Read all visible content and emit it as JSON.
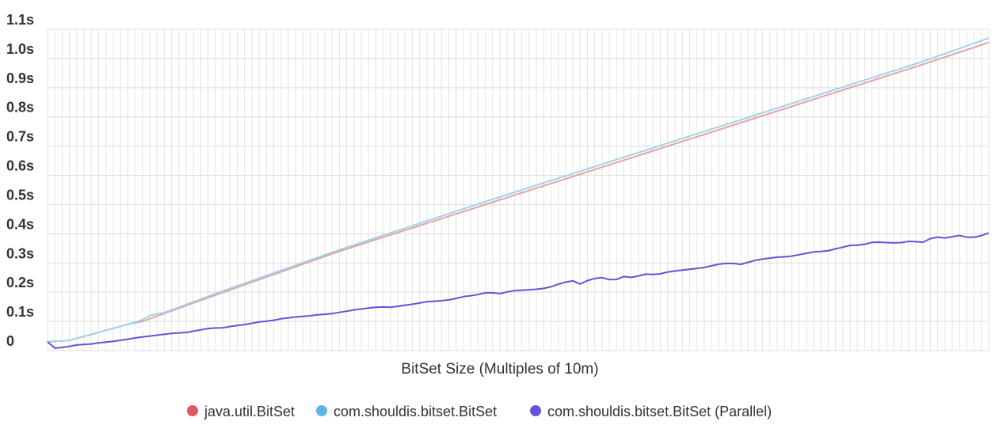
{
  "chart_data": {
    "type": "line",
    "title": "",
    "xlabel": "BitSet Size (Multiples of 10m)",
    "ylabel": "",
    "x_count": 130,
    "ylim": [
      0,
      1.1
    ],
    "ytick_values": [
      0,
      0.1,
      0.2,
      0.3,
      0.4,
      0.5,
      0.6,
      0.7,
      0.8,
      0.9,
      1.0,
      1.1
    ],
    "ytick_labels": [
      "0",
      "0.1s",
      "0.2s",
      "0.3s",
      "0.4s",
      "0.5s",
      "0.6s",
      "0.7s",
      "0.8s",
      "0.9s",
      "1.0s",
      "1.1s"
    ],
    "grid": true,
    "legend_position": "bottom-center",
    "series": [
      {
        "name": "java.util.BitSet",
        "color": "#e8a0a6",
        "legend_color": "#e05763",
        "anchors": [
          [
            0,
            0.03
          ],
          [
            3,
            0.035
          ],
          [
            11,
            0.09
          ],
          [
            13,
            0.1
          ],
          [
            23,
            0.19
          ],
          [
            40,
            0.34
          ],
          [
            60,
            0.5
          ],
          [
            80,
            0.66
          ],
          [
            100,
            0.82
          ],
          [
            120,
            0.98
          ],
          [
            129,
            1.055
          ]
        ]
      },
      {
        "name": "com.shouldis.bitset.BitSet",
        "color": "#9fd3ea",
        "legend_color": "#5ab6e2",
        "anchors": [
          [
            0,
            0.03
          ],
          [
            3,
            0.035
          ],
          [
            11,
            0.09
          ],
          [
            13,
            0.105
          ],
          [
            14,
            0.12
          ],
          [
            16,
            0.13
          ],
          [
            23,
            0.195
          ],
          [
            40,
            0.345
          ],
          [
            60,
            0.51
          ],
          [
            80,
            0.67
          ],
          [
            100,
            0.83
          ],
          [
            120,
            0.99
          ],
          [
            129,
            1.07
          ]
        ]
      },
      {
        "name": "com.shouldis.bitset.BitSet (Parallel)",
        "color": "#6a50d8",
        "legend_color": "#6a50d8",
        "anchors": [
          [
            0,
            0.03
          ],
          [
            1,
            0.008
          ],
          [
            3,
            0.012
          ],
          [
            5,
            0.02
          ],
          [
            7,
            0.022
          ],
          [
            9,
            0.028
          ],
          [
            11,
            0.032
          ],
          [
            13,
            0.038
          ],
          [
            15,
            0.045
          ],
          [
            17,
            0.05
          ],
          [
            19,
            0.055
          ],
          [
            21,
            0.06
          ],
          [
            23,
            0.062
          ],
          [
            25,
            0.07
          ],
          [
            27,
            0.077
          ],
          [
            29,
            0.078
          ],
          [
            31,
            0.085
          ],
          [
            33,
            0.09
          ],
          [
            35,
            0.098
          ],
          [
            37,
            0.102
          ],
          [
            39,
            0.11
          ],
          [
            41,
            0.115
          ],
          [
            43,
            0.118
          ],
          [
            45,
            0.123
          ],
          [
            47,
            0.126
          ],
          [
            49,
            0.133
          ],
          [
            51,
            0.14
          ],
          [
            53,
            0.145
          ],
          [
            55,
            0.15
          ],
          [
            57,
            0.148
          ],
          [
            59,
            0.155
          ],
          [
            61,
            0.16
          ],
          [
            63,
            0.168
          ],
          [
            65,
            0.17
          ],
          [
            67,
            0.175
          ],
          [
            69,
            0.185
          ],
          [
            71,
            0.19
          ],
          [
            73,
            0.2
          ],
          [
            75,
            0.195
          ],
          [
            77,
            0.205
          ],
          [
            79,
            0.207
          ],
          [
            81,
            0.21
          ],
          [
            83,
            0.215
          ],
          [
            85,
            0.23
          ],
          [
            87,
            0.24
          ],
          [
            88,
            0.225
          ],
          [
            90,
            0.245
          ],
          [
            92,
            0.25
          ],
          [
            94,
            0.238
          ],
          [
            95,
            0.255
          ],
          [
            97,
            0.25
          ],
          [
            99,
            0.262
          ],
          [
            101,
            0.26
          ],
          [
            103,
            0.27
          ],
          [
            105,
            0.275
          ],
          [
            107,
            0.28
          ],
          [
            109,
            0.285
          ],
          [
            111,
            0.295
          ],
          [
            113,
            0.3
          ],
          [
            115,
            0.295
          ],
          [
            117,
            0.308
          ],
          [
            119,
            0.315
          ],
          [
            121,
            0.32
          ],
          [
            123,
            0.322
          ],
          [
            125,
            0.33
          ],
          [
            127,
            0.338
          ],
          [
            129,
            0.34
          ],
          [
            131,
            0.35
          ],
          [
            133,
            0.36
          ],
          [
            135,
            0.362
          ],
          [
            137,
            0.372
          ],
          [
            139,
            0.37
          ],
          [
            141,
            0.368
          ],
          [
            143,
            0.375
          ],
          [
            145,
            0.37
          ],
          [
            147,
            0.39
          ],
          [
            149,
            0.385
          ],
          [
            151,
            0.395
          ],
          [
            153,
            0.385
          ],
          [
            155,
            0.395
          ],
          [
            157,
            0.41
          ]
        ],
        "x_scale": 0.8269
      }
    ]
  }
}
